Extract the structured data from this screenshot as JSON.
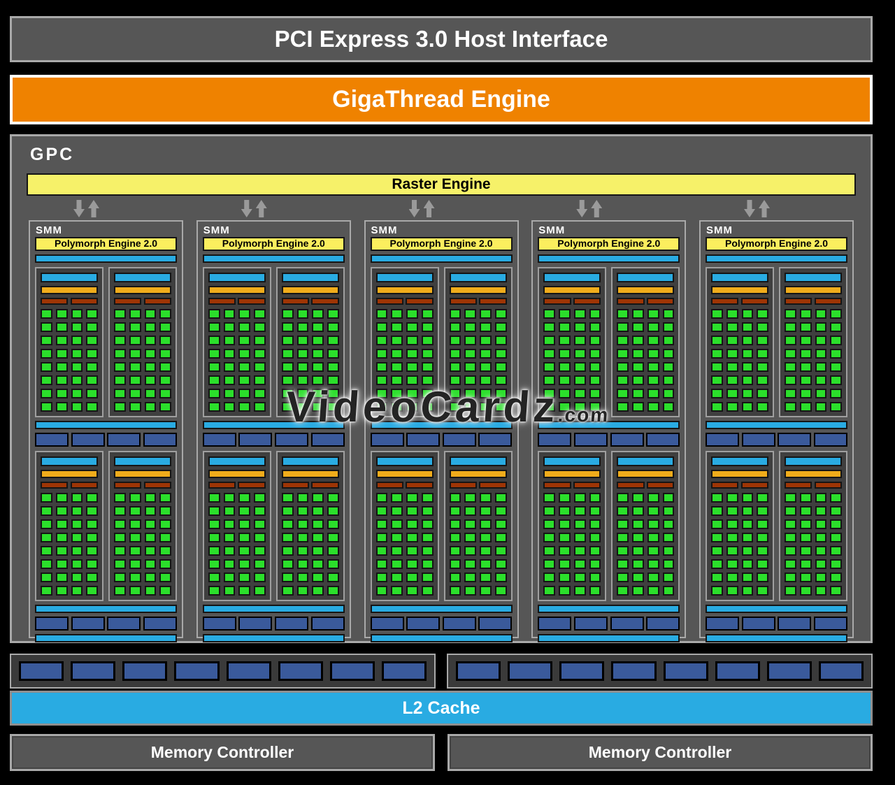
{
  "bars": {
    "pci": "PCI Express 3.0 Host Interface",
    "gigathread": "GigaThread Engine",
    "gpc_label": "GPC",
    "raster": "Raster Engine",
    "l2": "L2 Cache",
    "memory_controllers": [
      "Memory Controller",
      "Memory Controller"
    ]
  },
  "smm": {
    "count": 5,
    "label": "SMM",
    "polymorph": "Polymorph Engine 2.0",
    "processing_groups_per_smm": 2,
    "subblocks_per_group": 2,
    "cores_per_subblock": {
      "cols": 4,
      "rows": 8
    },
    "texture_units_per_row": 4
  },
  "rop": {
    "blocks": 2,
    "units_per_block": 8
  },
  "arrows": {
    "pairs_above_smms": 5
  },
  "watermark": {
    "main": "VideoCardz",
    "suffix": ".com"
  },
  "colors": {
    "bg": "#000000",
    "panel_gray": "#565656",
    "border_gray": "#a9a9a9",
    "subblock_gray": "#3f3f3f",
    "rop_gray": "#3a3a3a",
    "orange": "#ef8200",
    "pale_yellow": "#f6f169",
    "bright_yellow": "#fbee5e",
    "cyan": "#29abe2",
    "gold": "#f0ac1b",
    "dark_red": "#9e3505",
    "green": "#2bdf2b",
    "navy": "#3a5a9b",
    "arrow_gray": "#9a9a9a"
  }
}
